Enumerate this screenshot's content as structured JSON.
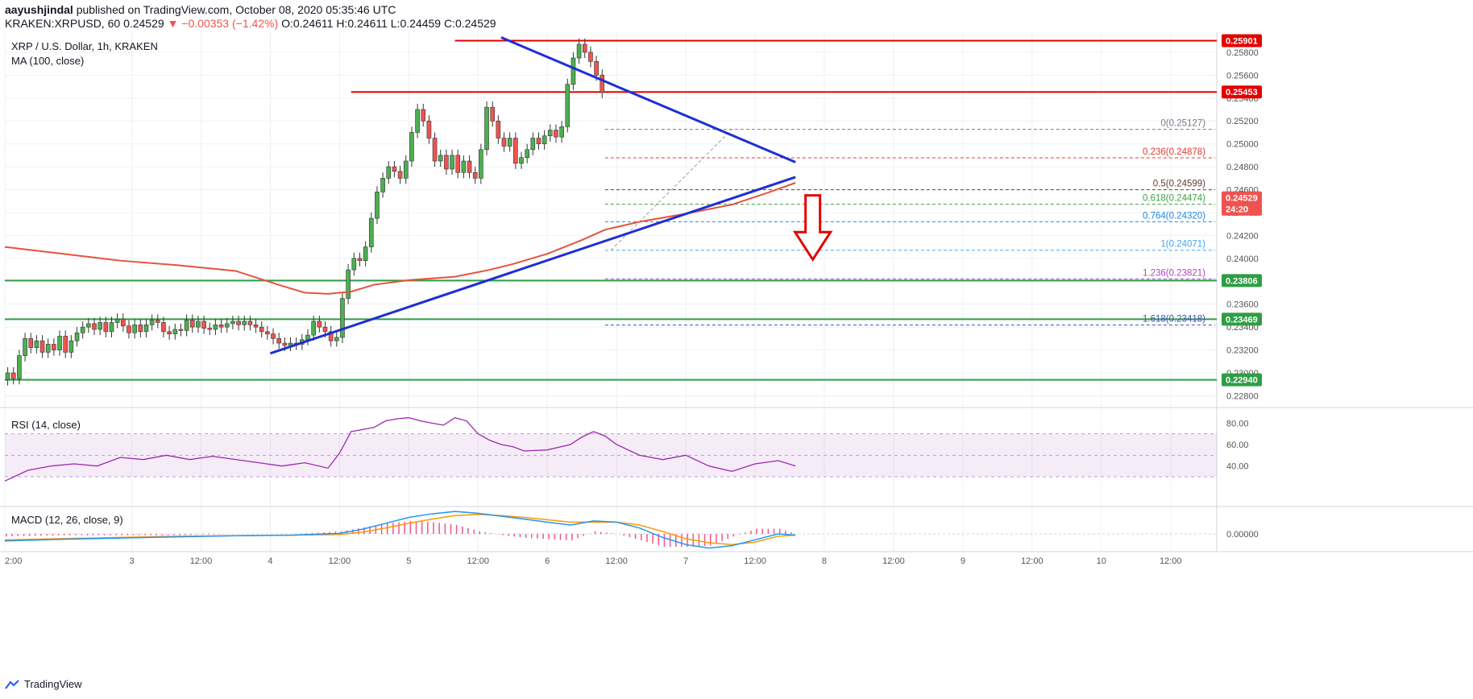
{
  "header": {
    "author": "aayushjindal",
    "published_text": "published on TradingView.com, October 08, 2020 05:35:46 UTC",
    "symbol": "KRAKEN:XRPUSD, 60",
    "price": "0.24529",
    "change": "▼ −0.00353 (−1.42%)",
    "ohlc": "O:0.24611 H:0.24611 L:0.24459 C:0.24529"
  },
  "legend": {
    "title": "XRP / U.S. Dollar, 1h, KRAKEN",
    "ma": "MA (100, close)",
    "rsi": "RSI (14, close)",
    "macd": "MACD (12, 26, close, 9)"
  },
  "footer": {
    "brand": "TradingView"
  },
  "colors": {
    "up": "#4caf50",
    "down": "#ef5350",
    "ma": "#e5533c",
    "trend": "#1e2fd1",
    "support": "#2e9e44",
    "resistance": "#e50000",
    "rsi": "#9c27b0",
    "macd": "#2196f3",
    "signal": "#ff9800"
  },
  "chart_data": {
    "type": "candlestick",
    "pair": "XRP / U.S. Dollar",
    "interval": "1h",
    "exchange": "KRAKEN",
    "axis_unit": "USD",
    "price_ticks": [
      "0.25800",
      "0.25600",
      "0.25400",
      "0.25200",
      "0.25000",
      "0.24800",
      "0.24600",
      "0.24400",
      "0.24200",
      "0.24000",
      "0.23800",
      "0.23600",
      "0.23400",
      "0.23200",
      "0.23000",
      "0.22800"
    ],
    "price_labels": [
      {
        "text": "0.25901",
        "value": 0.25901,
        "color": "#e50000"
      },
      {
        "text": "0.25453",
        "value": 0.25453,
        "color": "#e50000"
      },
      {
        "text": "0.24529",
        "value": 0.24529,
        "color": "#ef5350"
      },
      {
        "text": "24:20",
        "value": 0.2443,
        "color": "#ef5350"
      },
      {
        "text": "0.23806",
        "value": 0.23806,
        "color": "#2e9e44"
      },
      {
        "text": "0.23469",
        "value": 0.23469,
        "color": "#2e9e44"
      },
      {
        "text": "0.22940",
        "value": 0.2294,
        "color": "#2e9e44"
      }
    ],
    "x_ticks": [
      {
        "label": "2:00",
        "t": 0
      },
      {
        "label": "3",
        "t": 22
      },
      {
        "label": "12:00",
        "t": 34
      },
      {
        "label": "4",
        "t": 46
      },
      {
        "label": "12:00",
        "t": 58
      },
      {
        "label": "5",
        "t": 70
      },
      {
        "label": "12:00",
        "t": 82
      },
      {
        "label": "6",
        "t": 94
      },
      {
        "label": "12:00",
        "t": 106
      },
      {
        "label": "7",
        "t": 118
      },
      {
        "label": "12:00",
        "t": 130
      },
      {
        "label": "8",
        "t": 142
      },
      {
        "label": "12:00",
        "t": 154
      },
      {
        "label": "9",
        "t": 166
      },
      {
        "label": "12:00",
        "t": 178
      },
      {
        "label": "10",
        "t": 190
      },
      {
        "label": "12:00",
        "t": 202
      }
    ],
    "horizontal_levels": [
      {
        "value": 0.25901,
        "color": "#e50000",
        "from_t": 78
      },
      {
        "value": 0.25453,
        "color": "#e50000",
        "from_t": 60
      },
      {
        "value": 0.23806,
        "color": "#2e9e44",
        "from_t": 0
      },
      {
        "value": 0.23469,
        "color": "#2e9e44",
        "from_t": 0
      },
      {
        "value": 0.2294,
        "color": "#2e9e44",
        "from_t": 0
      }
    ],
    "trendlines": [
      {
        "t1": 86,
        "v1": 0.2593,
        "t2": 137,
        "v2": 0.2484
      },
      {
        "t1": 46,
        "v1": 0.2317,
        "t2": 137,
        "v2": 0.2471
      }
    ],
    "fibonacci": [
      {
        "label": "0(0.25127)",
        "value": 0.25127,
        "color": "#787b86"
      },
      {
        "label": "0.236(0.24878)",
        "value": 0.24878,
        "color": "#e53935"
      },
      {
        "label": "0.5(0.24599)",
        "value": 0.24599,
        "color": "#5d4037"
      },
      {
        "label": "0.618(0.24474)",
        "value": 0.24474,
        "color": "#43a047"
      },
      {
        "label": "0.764(0.24320)",
        "value": 0.2432,
        "color": "#1e88e5"
      },
      {
        "label": "1(0.24071)",
        "value": 0.24071,
        "color": "#42a5f5"
      },
      {
        "label": "1.236(0.23821)",
        "value": 0.23821,
        "color": "#ab47bc"
      },
      {
        "label": "1.618(0.23418)",
        "value": 0.23418,
        "color": "#3f51b5"
      }
    ],
    "fib_from_t": 104,
    "fib_swing": {
      "t1": 105,
      "v1": 0.24071,
      "t2": 126,
      "v2": 0.25127
    },
    "arrow": {
      "t": 140,
      "from": 0.2455,
      "to": 0.2399
    },
    "ma_100": [
      [
        0,
        0.241
      ],
      [
        10,
        0.2404
      ],
      [
        20,
        0.2398
      ],
      [
        30,
        0.2394
      ],
      [
        40,
        0.2389
      ],
      [
        48,
        0.2376
      ],
      [
        52,
        0.237
      ],
      [
        56,
        0.2369
      ],
      [
        60,
        0.2371
      ],
      [
        64,
        0.2377
      ],
      [
        70,
        0.2381
      ],
      [
        78,
        0.2384
      ],
      [
        84,
        0.239
      ],
      [
        88,
        0.2395
      ],
      [
        94,
        0.2404
      ],
      [
        100,
        0.2416
      ],
      [
        104,
        0.2425
      ],
      [
        110,
        0.2432
      ],
      [
        118,
        0.2439
      ],
      [
        126,
        0.2447
      ],
      [
        132,
        0.2457
      ],
      [
        137,
        0.2466
      ]
    ],
    "candles": [
      [
        0,
        0.23
      ],
      [
        1,
        0.2295
      ],
      [
        2,
        0.2315
      ],
      [
        3,
        0.233
      ],
      [
        4,
        0.2322
      ],
      [
        5,
        0.2328
      ],
      [
        6,
        0.2318
      ],
      [
        7,
        0.2325
      ],
      [
        8,
        0.232
      ],
      [
        9,
        0.2332
      ],
      [
        10,
        0.2318
      ],
      [
        11,
        0.2328
      ],
      [
        12,
        0.2335
      ],
      [
        13,
        0.234
      ],
      [
        14,
        0.2343
      ],
      [
        15,
        0.2338
      ],
      [
        16,
        0.2344
      ],
      [
        17,
        0.2336
      ],
      [
        18,
        0.2344
      ],
      [
        19,
        0.2347
      ],
      [
        20,
        0.2341
      ],
      [
        21,
        0.2335
      ],
      [
        22,
        0.2342
      ],
      [
        23,
        0.2336
      ],
      [
        24,
        0.2342
      ],
      [
        25,
        0.2346
      ],
      [
        26,
        0.2344
      ],
      [
        27,
        0.2336
      ],
      [
        28,
        0.2334
      ],
      [
        29,
        0.2338
      ],
      [
        30,
        0.2337
      ],
      [
        31,
        0.2346
      ],
      [
        32,
        0.234
      ],
      [
        33,
        0.2345
      ],
      [
        34,
        0.2339
      ],
      [
        35,
        0.2338
      ],
      [
        36,
        0.2342
      ],
      [
        37,
        0.234
      ],
      [
        38,
        0.2343
      ],
      [
        39,
        0.2345
      ],
      [
        40,
        0.2342
      ],
      [
        41,
        0.2345
      ],
      [
        42,
        0.2342
      ],
      [
        43,
        0.234
      ],
      [
        44,
        0.2336
      ],
      [
        45,
        0.2334
      ],
      [
        46,
        0.233
      ],
      [
        47,
        0.2326
      ],
      [
        48,
        0.2324
      ],
      [
        49,
        0.2326
      ],
      [
        50,
        0.2325
      ],
      [
        51,
        0.2329
      ],
      [
        52,
        0.2333
      ],
      [
        53,
        0.2345
      ],
      [
        54,
        0.234
      ],
      [
        55,
        0.2336
      ],
      [
        56,
        0.2328
      ],
      [
        57,
        0.2331
      ],
      [
        58,
        0.2365
      ],
      [
        59,
        0.239
      ],
      [
        60,
        0.24
      ],
      [
        61,
        0.2398
      ],
      [
        62,
        0.241
      ],
      [
        63,
        0.2435
      ],
      [
        64,
        0.2458
      ],
      [
        65,
        0.247
      ],
      [
        66,
        0.248
      ],
      [
        67,
        0.2476
      ],
      [
        68,
        0.247
      ],
      [
        69,
        0.2485
      ],
      [
        70,
        0.251
      ],
      [
        71,
        0.253
      ],
      [
        72,
        0.252
      ],
      [
        73,
        0.2505
      ],
      [
        74,
        0.2485
      ],
      [
        75,
        0.249
      ],
      [
        76,
        0.2478
      ],
      [
        77,
        0.249
      ],
      [
        78,
        0.2475
      ],
      [
        79,
        0.2485
      ],
      [
        80,
        0.2475
      ],
      [
        81,
        0.247
      ],
      [
        82,
        0.2495
      ],
      [
        83,
        0.2532
      ],
      [
        84,
        0.252
      ],
      [
        85,
        0.2505
      ],
      [
        86,
        0.2498
      ],
      [
        87,
        0.2505
      ],
      [
        88,
        0.2483
      ],
      [
        89,
        0.2488
      ],
      [
        90,
        0.2495
      ],
      [
        91,
        0.2505
      ],
      [
        92,
        0.25
      ],
      [
        93,
        0.2507
      ],
      [
        94,
        0.2512
      ],
      [
        95,
        0.2506
      ],
      [
        96,
        0.2515
      ],
      [
        97,
        0.2552
      ],
      [
        98,
        0.2575
      ],
      [
        99,
        0.2587
      ],
      [
        100,
        0.258
      ],
      [
        101,
        0.2572
      ],
      [
        102,
        0.256
      ],
      [
        103,
        0.2545
      ]
    ],
    "rsi_ticks": [
      80,
      60,
      40
    ],
    "rsi_band": [
      30,
      70
    ],
    "rsi": [
      [
        0,
        26
      ],
      [
        4,
        36
      ],
      [
        8,
        40
      ],
      [
        12,
        42
      ],
      [
        16,
        40
      ],
      [
        20,
        48
      ],
      [
        24,
        46
      ],
      [
        28,
        50
      ],
      [
        32,
        46
      ],
      [
        36,
        49
      ],
      [
        40,
        46
      ],
      [
        44,
        43
      ],
      [
        48,
        40
      ],
      [
        52,
        43
      ],
      [
        56,
        38
      ],
      [
        58,
        52
      ],
      [
        60,
        72
      ],
      [
        62,
        74
      ],
      [
        64,
        76
      ],
      [
        66,
        82
      ],
      [
        68,
        84
      ],
      [
        70,
        85
      ],
      [
        72,
        82
      ],
      [
        74,
        80
      ],
      [
        76,
        78
      ],
      [
        78,
        85
      ],
      [
        80,
        82
      ],
      [
        82,
        70
      ],
      [
        84,
        64
      ],
      [
        86,
        60
      ],
      [
        88,
        58
      ],
      [
        90,
        54
      ],
      [
        94,
        55
      ],
      [
        98,
        60
      ],
      [
        100,
        67
      ],
      [
        102,
        72
      ],
      [
        104,
        68
      ],
      [
        106,
        60
      ],
      [
        110,
        50
      ],
      [
        114,
        46
      ],
      [
        118,
        50
      ],
      [
        122,
        40
      ],
      [
        126,
        35
      ],
      [
        130,
        42
      ],
      [
        134,
        45
      ],
      [
        137,
        40
      ]
    ],
    "macd_ticks": [
      "0.00000"
    ],
    "macd": [
      [
        0,
        -0.0012
      ],
      [
        10,
        -0.0009
      ],
      [
        20,
        -0.0007
      ],
      [
        30,
        -0.0005
      ],
      [
        40,
        -0.0003
      ],
      [
        50,
        -0.0002
      ],
      [
        58,
        0.0001
      ],
      [
        62,
        0.0008
      ],
      [
        66,
        0.0018
      ],
      [
        70,
        0.0028
      ],
      [
        74,
        0.0034
      ],
      [
        78,
        0.0038
      ],
      [
        82,
        0.0035
      ],
      [
        86,
        0.003
      ],
      [
        90,
        0.0025
      ],
      [
        94,
        0.002
      ],
      [
        98,
        0.0015
      ],
      [
        102,
        0.0022
      ],
      [
        106,
        0.002
      ],
      [
        110,
        0.001
      ],
      [
        114,
        -0.0006
      ],
      [
        118,
        -0.0018
      ],
      [
        122,
        -0.0024
      ],
      [
        126,
        -0.002
      ],
      [
        130,
        -0.001
      ],
      [
        134,
        0.0
      ],
      [
        137,
        -0.0002
      ]
    ],
    "macd_signal": [
      [
        0,
        -0.001
      ],
      [
        10,
        -0.0008
      ],
      [
        20,
        -0.0006
      ],
      [
        30,
        -0.0004
      ],
      [
        40,
        -0.0003
      ],
      [
        50,
        -0.0002
      ],
      [
        58,
        -0.0001
      ],
      [
        62,
        0.0003
      ],
      [
        66,
        0.001
      ],
      [
        70,
        0.0018
      ],
      [
        74,
        0.0025
      ],
      [
        78,
        0.0031
      ],
      [
        82,
        0.0033
      ],
      [
        86,
        0.0031
      ],
      [
        90,
        0.0028
      ],
      [
        94,
        0.0024
      ],
      [
        98,
        0.002
      ],
      [
        102,
        0.002
      ],
      [
        106,
        0.002
      ],
      [
        110,
        0.0015
      ],
      [
        114,
        0.0004
      ],
      [
        118,
        -0.0008
      ],
      [
        122,
        -0.0015
      ],
      [
        126,
        -0.0018
      ],
      [
        130,
        -0.0014
      ],
      [
        134,
        -0.0004
      ],
      [
        137,
        -0.0002
      ]
    ]
  }
}
